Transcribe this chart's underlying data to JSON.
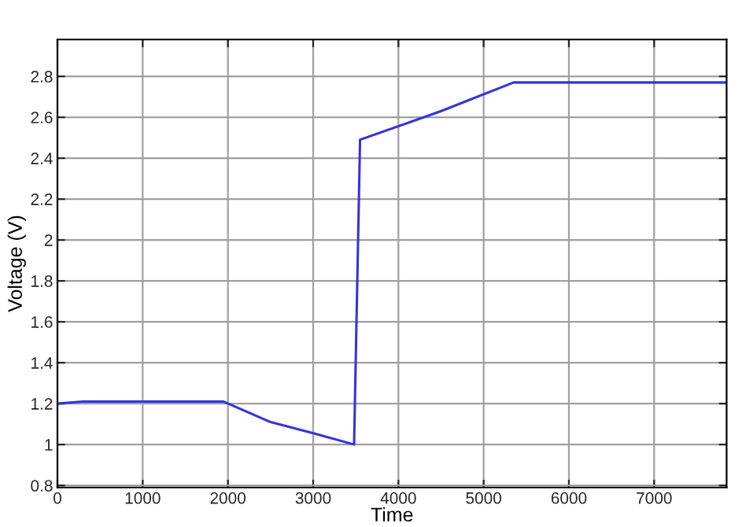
{
  "chart_data": {
    "type": "line",
    "xlabel": "Time",
    "ylabel": "Voltage (V)",
    "series": [
      {
        "color": "#3333dd",
        "x": [
          0,
          300,
          1950,
          2500,
          3000,
          3480,
          3550,
          4500,
          5350,
          7850
        ],
        "values": [
          1.2,
          1.21,
          1.21,
          1.11,
          1.055,
          1.0,
          2.49,
          2.63,
          2.77,
          2.77
        ]
      }
    ],
    "xlim": [
      0,
      7850
    ],
    "xticks": [
      0,
      1000,
      2000,
      3000,
      4000,
      5000,
      6000,
      7000
    ],
    "ylim": [
      0.79,
      2.98
    ],
    "yticks": [
      0.8,
      1,
      1.2,
      1.4,
      1.6,
      1.8,
      2,
      2.2,
      2.4,
      2.6,
      2.8
    ],
    "grid": true,
    "marker": "none",
    "line_style": "solid"
  }
}
